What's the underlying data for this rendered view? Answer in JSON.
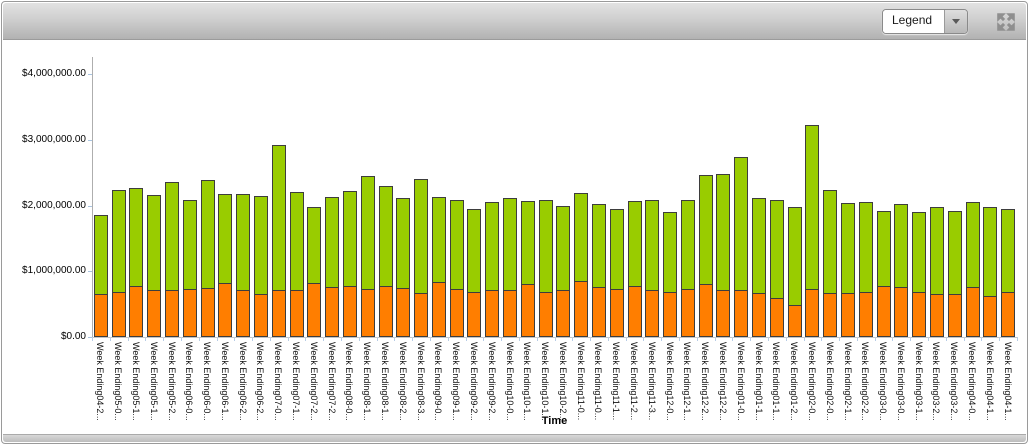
{
  "toolbar": {
    "legend_label": "Legend",
    "dropdown_icon": "chevron-down-icon",
    "expand_icon": "expand-arrows-icon",
    "expand_color": "#8f8f8f"
  },
  "chart_data": {
    "type": "bar",
    "subtype": "stacked-vertical",
    "title": "",
    "xlabel": "Time",
    "ylabel": "",
    "ylim": [
      0,
      4000000
    ],
    "grid": "off",
    "legend_position": "collapsed-dropdown",
    "y_tick_labels": [
      "$0.00",
      "$1,000,000.00",
      "$2,000,000.00",
      "$3,000,000.00",
      "$4,000,000.00"
    ],
    "y_tick_values": [
      0,
      1000000,
      2000000,
      3000000,
      4000000
    ],
    "categories": [
      "Week Ending04-2...",
      "Week Ending05-0...",
      "Week Ending05-1...",
      "Week Ending05-1...",
      "Week Ending05-2...",
      "Week Ending06-0...",
      "Week Ending06-0...",
      "Week Ending06-1...",
      "Week Ending06-2...",
      "Week Ending06-2...",
      "Week Ending07-0...",
      "Week Ending07-1...",
      "Week Ending07-2...",
      "Week Ending07-2...",
      "Week Ending08-0...",
      "Week Ending08-1...",
      "Week Ending08-1...",
      "Week Ending08-2...",
      "Week Ending08-3...",
      "Week Ending09-0...",
      "Week Ending09-1...",
      "Week Ending09-2...",
      "Week Ending09-2...",
      "Week Ending10-0...",
      "Week Ending10-1...",
      "Week Ending10-1...",
      "Week Ending10-2...",
      "Week Ending11-0...",
      "Week Ending11-0...",
      "Week Ending11-1...",
      "Week Ending11-2...",
      "Week Ending11-3...",
      "Week Ending12-0...",
      "Week Ending12-1...",
      "Week Ending12-2...",
      "Week Ending12-2...",
      "Week Ending01-0...",
      "Week Ending01-1...",
      "Week Ending01-1...",
      "Week Ending01-2...",
      "Week Ending02-0...",
      "Week Ending02-0...",
      "Week Ending02-1...",
      "Week Ending02-2...",
      "Week Ending03-0...",
      "Week Ending03-0...",
      "Week Ending03-1...",
      "Week Ending03-2...",
      "Week Ending03-2...",
      "Week Ending04-0...",
      "Week Ending04-1...",
      "Week Ending04-1..."
    ],
    "series": [
      {
        "name": "orange",
        "color": "#FF7E00",
        "values": [
          660000,
          680000,
          770000,
          710000,
          720000,
          730000,
          740000,
          820000,
          710000,
          660000,
          720000,
          720000,
          820000,
          760000,
          770000,
          730000,
          770000,
          740000,
          670000,
          840000,
          730000,
          680000,
          720000,
          720000,
          810000,
          680000,
          710000,
          850000,
          760000,
          730000,
          780000,
          710000,
          680000,
          730000,
          810000,
          710000,
          720000,
          670000,
          600000,
          480000,
          730000,
          670000,
          670000,
          690000,
          770000,
          760000,
          680000,
          650000,
          660000,
          760000,
          620000,
          680000
        ]
      },
      {
        "name": "green",
        "color": "#99CC00",
        "values": [
          1190000,
          1550000,
          1490000,
          1450000,
          1640000,
          1360000,
          1650000,
          1350000,
          1470000,
          1490000,
          2200000,
          1490000,
          1160000,
          1370000,
          1450000,
          1720000,
          1520000,
          1370000,
          1730000,
          1290000,
          1360000,
          1260000,
          1340000,
          1400000,
          1260000,
          1410000,
          1280000,
          1340000,
          1260000,
          1220000,
          1290000,
          1380000,
          1220000,
          1360000,
          1650000,
          1770000,
          2020000,
          1450000,
          1480000,
          1500000,
          2500000,
          1560000,
          1370000,
          1370000,
          1150000,
          1270000,
          1220000,
          1330000,
          1250000,
          1300000,
          1360000,
          1260000
        ]
      }
    ]
  }
}
